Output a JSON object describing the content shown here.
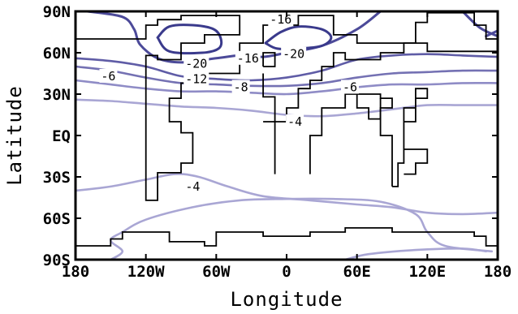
{
  "chart_data": {
    "type": "contour",
    "title": "",
    "xlabel": "Longitude",
    "ylabel": "Latitude",
    "xlim": [
      -180,
      180
    ],
    "ylim": [
      -90,
      90
    ],
    "x_ticks": [
      {
        "value": -180,
        "label": "180"
      },
      {
        "value": -120,
        "label": "120W"
      },
      {
        "value": -60,
        "label": "60W"
      },
      {
        "value": 0,
        "label": "0"
      },
      {
        "value": 60,
        "label": "60E"
      },
      {
        "value": 120,
        "label": "120E"
      },
      {
        "value": 180,
        "label": "180"
      }
    ],
    "y_ticks": [
      {
        "value": 90,
        "label": "90N"
      },
      {
        "value": 60,
        "label": "60N"
      },
      {
        "value": 30,
        "label": "30N"
      },
      {
        "value": 0,
        "label": "EQ"
      },
      {
        "value": -30,
        "label": "30S"
      },
      {
        "value": -60,
        "label": "60S"
      },
      {
        "value": -90,
        "label": "90S"
      }
    ],
    "colors": {
      "level_-4": "#a9a6d4",
      "level_-6": "#8f8cc6",
      "level_-8": "#7471b3",
      "level_-12": "#5f5ca6",
      "level_-16": "#4c4a99",
      "level_-20": "#3a3a8c",
      "coastline": "#000000"
    },
    "contours": [
      {
        "level": -4,
        "points": [
          [
            -180,
            26
          ],
          [
            -150,
            25
          ],
          [
            -120,
            23
          ],
          [
            -90,
            21
          ],
          [
            -60,
            20
          ],
          [
            -30,
            18
          ],
          [
            0,
            15
          ],
          [
            30,
            14
          ],
          [
            60,
            16
          ],
          [
            90,
            19
          ],
          [
            120,
            22
          ],
          [
            150,
            22
          ],
          [
            180,
            22
          ]
        ]
      },
      {
        "level": -4,
        "points": [
          [
            -180,
            -40
          ],
          [
            -150,
            -37
          ],
          [
            -120,
            -32
          ],
          [
            -95,
            -28
          ],
          [
            -75,
            -30
          ],
          [
            -50,
            -37
          ],
          [
            -20,
            -44
          ],
          [
            20,
            -47
          ],
          [
            60,
            -50
          ],
          [
            90,
            -52
          ],
          [
            120,
            -56
          ],
          [
            150,
            -57
          ],
          [
            180,
            -56
          ]
        ]
      },
      {
        "level": -4,
        "points": [
          [
            -150,
            -90
          ],
          [
            -140,
            -84
          ],
          [
            -150,
            -76
          ],
          [
            -140,
            -70
          ],
          [
            -120,
            -61
          ],
          [
            -80,
            -52
          ],
          [
            -40,
            -47
          ],
          [
            0,
            -46
          ],
          [
            40,
            -46
          ],
          [
            80,
            -48
          ],
          [
            110,
            -57
          ],
          [
            120,
            -70
          ],
          [
            135,
            -80
          ],
          [
            175,
            -84
          ]
        ]
      },
      {
        "level": -4,
        "points": [
          [
            50,
            -90
          ],
          [
            70,
            -86
          ],
          [
            110,
            -83
          ],
          [
            150,
            -82
          ],
          [
            170,
            -84
          ]
        ]
      },
      {
        "level": -6,
        "points": [
          [
            -180,
            40
          ],
          [
            -150,
            37
          ],
          [
            -120,
            34
          ],
          [
            -90,
            32
          ],
          [
            -60,
            32
          ],
          [
            -30,
            31
          ],
          [
            0,
            30
          ],
          [
            30,
            32
          ],
          [
            60,
            35
          ],
          [
            90,
            37
          ],
          [
            120,
            37
          ],
          [
            150,
            38
          ],
          [
            180,
            38
          ]
        ]
      },
      {
        "level": -8,
        "points": [
          [
            -180,
            50
          ],
          [
            -150,
            47
          ],
          [
            -120,
            42
          ],
          [
            -90,
            38
          ],
          [
            -60,
            37
          ],
          [
            -30,
            36
          ],
          [
            0,
            36
          ],
          [
            30,
            38
          ],
          [
            60,
            42
          ],
          [
            90,
            45
          ],
          [
            120,
            46
          ],
          [
            150,
            47
          ],
          [
            180,
            47
          ]
        ]
      },
      {
        "level": -12,
        "points": [
          [
            -180,
            56
          ],
          [
            -150,
            54
          ],
          [
            -120,
            50
          ],
          [
            -90,
            43
          ],
          [
            -60,
            41
          ],
          [
            -30,
            40
          ],
          [
            0,
            42
          ],
          [
            30,
            47
          ],
          [
            60,
            55
          ],
          [
            90,
            58
          ],
          [
            120,
            59
          ],
          [
            150,
            58
          ],
          [
            180,
            57
          ]
        ]
      },
      {
        "level": -16,
        "points": [
          [
            -170,
            90
          ],
          [
            -140,
            86
          ],
          [
            -130,
            77
          ],
          [
            -125,
            66
          ],
          [
            -110,
            56
          ],
          [
            -90,
            53
          ],
          [
            -60,
            56
          ],
          [
            -40,
            58
          ],
          [
            -20,
            57
          ],
          [
            0,
            60
          ],
          [
            30,
            65
          ],
          [
            60,
            77
          ],
          [
            80,
            90
          ]
        ]
      },
      {
        "level": -16,
        "points": [
          [
            150,
            90
          ],
          [
            165,
            78
          ],
          [
            180,
            72
          ]
        ]
      },
      {
        "level": -16,
        "points": [
          [
            170,
            72
          ],
          [
            180,
            76
          ]
        ]
      },
      {
        "level": -20,
        "points": [
          [
            -110,
            71
          ],
          [
            -100,
            79
          ],
          [
            -80,
            80
          ],
          [
            -62,
            77
          ],
          [
            -56,
            70
          ],
          [
            -58,
            63
          ],
          [
            -72,
            60
          ],
          [
            -100,
            61
          ],
          [
            -110,
            71
          ]
        ]
      },
      {
        "level": -20,
        "points": [
          [
            -18,
            67
          ],
          [
            -5,
            75
          ],
          [
            10,
            79
          ],
          [
            30,
            77
          ],
          [
            38,
            71
          ],
          [
            30,
            65
          ],
          [
            10,
            63
          ],
          [
            -8,
            63
          ],
          [
            -18,
            67
          ]
        ]
      }
    ],
    "contour_labels": [
      {
        "text": "-16",
        "x": -5,
        "y": 84
      },
      {
        "text": "-16",
        "x": -33,
        "y": 56
      },
      {
        "text": "-20",
        "x": -77,
        "y": 52
      },
      {
        "text": "-20",
        "x": 6,
        "y": 59
      },
      {
        "text": "-12",
        "x": -77,
        "y": 41
      },
      {
        "text": "-8",
        "x": -39,
        "y": 35
      },
      {
        "text": "-6",
        "x": -152,
        "y": 43
      },
      {
        "text": "-6",
        "x": 54,
        "y": 35
      },
      {
        "text": "-4",
        "x": 7,
        "y": 10
      },
      {
        "text": "-4",
        "x": -80,
        "y": -37
      }
    ],
    "coastlines": [
      [
        [
          -180,
          70
        ],
        [
          -120,
          70
        ],
        [
          -120,
          80
        ],
        [
          -110,
          80
        ],
        [
          -110,
          84
        ],
        [
          -90,
          84
        ],
        [
          -90,
          87
        ],
        [
          -40,
          87
        ],
        [
          -40,
          73
        ],
        [
          -70,
          73
        ],
        [
          -70,
          67
        ],
        [
          -90,
          67
        ],
        [
          -90,
          55
        ],
        [
          -110,
          55
        ],
        [
          -110,
          58
        ],
        [
          -120,
          58
        ],
        [
          -120,
          -47
        ],
        [
          -110,
          -47
        ],
        [
          -110,
          -27
        ],
        [
          -90,
          -27
        ],
        [
          -90,
          -20
        ],
        [
          -80,
          -20
        ],
        [
          -80,
          2
        ],
        [
          -90,
          2
        ],
        [
          -90,
          10
        ],
        [
          -100,
          10
        ],
        [
          -100,
          27
        ],
        [
          -90,
          27
        ],
        [
          -90,
          38
        ],
        [
          -70,
          38
        ],
        [
          -70,
          45
        ],
        [
          -40,
          45
        ],
        [
          -40,
          67
        ],
        [
          -20,
          67
        ],
        [
          -20,
          80
        ],
        [
          -10,
          80
        ],
        [
          -10,
          86
        ],
        [
          0,
          86
        ],
        [
          0,
          80
        ],
        [
          10,
          80
        ],
        [
          10,
          87
        ],
        [
          40,
          87
        ],
        [
          40,
          73
        ],
        [
          60,
          73
        ],
        [
          60,
          67
        ],
        [
          110,
          67
        ],
        [
          110,
          82
        ],
        [
          120,
          82
        ],
        [
          120,
          89
        ],
        [
          160,
          89
        ],
        [
          160,
          80
        ],
        [
          170,
          80
        ],
        [
          170,
          70
        ],
        [
          180,
          70
        ]
      ],
      [
        [
          -20,
          50
        ],
        [
          -10,
          50
        ],
        [
          -10,
          60
        ],
        [
          -20,
          60
        ],
        [
          -20,
          50
        ]
      ],
      [
        [
          -10,
          -28
        ],
        [
          -10,
          10
        ],
        [
          0,
          10
        ],
        [
          0,
          20
        ],
        [
          10,
          20
        ],
        [
          10,
          34
        ],
        [
          20,
          34
        ],
        [
          20,
          40
        ],
        [
          30,
          40
        ],
        [
          30,
          50
        ],
        [
          40,
          50
        ],
        [
          40,
          60
        ],
        [
          50,
          60
        ],
        [
          50,
          55
        ],
        [
          80,
          55
        ],
        [
          80,
          60
        ],
        [
          100,
          60
        ],
        [
          100,
          67
        ],
        [
          120,
          67
        ],
        [
          120,
          61
        ],
        [
          180,
          61
        ]
      ],
      [
        [
          -20,
          10
        ],
        [
          -10,
          10
        ],
        [
          -10,
          28
        ],
        [
          -20,
          28
        ],
        [
          -20,
          45
        ]
      ],
      [
        [
          20,
          -28
        ],
        [
          20,
          0
        ],
        [
          30,
          0
        ],
        [
          30,
          20
        ],
        [
          50,
          20
        ],
        [
          50,
          30
        ],
        [
          80,
          30
        ],
        [
          80,
          27
        ],
        [
          90,
          27
        ],
        [
          90,
          20
        ],
        [
          80,
          20
        ],
        [
          80,
          12
        ],
        [
          70,
          12
        ],
        [
          70,
          20
        ],
        [
          60,
          20
        ],
        [
          60,
          30
        ],
        [
          50,
          30
        ]
      ],
      [
        [
          90,
          -37
        ],
        [
          90,
          0
        ],
        [
          80,
          0
        ],
        [
          80,
          27
        ]
      ],
      [
        [
          90,
          -37
        ],
        [
          95,
          -37
        ],
        [
          95,
          -20
        ],
        [
          100,
          -20
        ],
        [
          100,
          20
        ],
        [
          110,
          20
        ],
        [
          110,
          27
        ],
        [
          120,
          27
        ],
        [
          120,
          34
        ],
        [
          110,
          34
        ],
        [
          110,
          10
        ],
        [
          100,
          10
        ],
        [
          100,
          -10
        ],
        [
          120,
          -10
        ],
        [
          120,
          -20
        ],
        [
          110,
          -20
        ],
        [
          110,
          -28
        ],
        [
          100,
          -28
        ]
      ],
      [
        [
          -180,
          -80
        ],
        [
          -150,
          -80
        ],
        [
          -150,
          -75
        ],
        [
          -140,
          -75
        ],
        [
          -140,
          -70
        ],
        [
          -100,
          -70
        ],
        [
          -100,
          -77
        ],
        [
          -70,
          -77
        ],
        [
          -70,
          -80
        ],
        [
          -60,
          -80
        ],
        [
          -60,
          -70
        ],
        [
          -20,
          -70
        ],
        [
          -20,
          -73
        ],
        [
          20,
          -73
        ],
        [
          20,
          -70
        ],
        [
          50,
          -70
        ],
        [
          50,
          -67
        ],
        [
          90,
          -67
        ],
        [
          90,
          -70
        ],
        [
          160,
          -70
        ],
        [
          160,
          -73
        ],
        [
          170,
          -73
        ],
        [
          170,
          -80
        ],
        [
          180,
          -80
        ]
      ]
    ]
  }
}
